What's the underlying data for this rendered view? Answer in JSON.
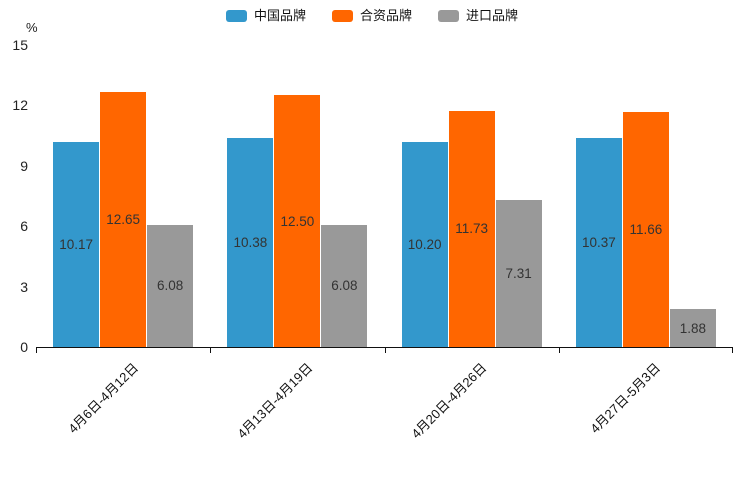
{
  "chart_data": {
    "type": "bar",
    "title": "",
    "xlabel": "",
    "ylabel": "%",
    "ylim": [
      0,
      15
    ],
    "yticks": [
      0,
      3,
      6,
      9,
      12,
      15
    ],
    "grid": false,
    "legend_position": "top-center",
    "value_labels": "inside-center",
    "value_decimals": 2,
    "categories": [
      "4月6日-4月12日",
      "4月13日-4月19日",
      "4月20日-4月26日",
      "4月27日-5月3日"
    ],
    "series": [
      {
        "name": "中国品牌",
        "slug": "china-brands",
        "color": "#3398CC",
        "values": [
          10.17,
          10.38,
          10.2,
          10.37
        ]
      },
      {
        "name": "合资品牌",
        "slug": "joint-venture-brands",
        "color": "#FF6600",
        "values": [
          12.65,
          12.5,
          11.73,
          11.66
        ]
      },
      {
        "name": "进口品牌",
        "slug": "import-brands",
        "color": "#999999",
        "values": [
          6.08,
          6.08,
          7.31,
          1.88
        ]
      }
    ],
    "colors": {
      "axis": "#111111",
      "value_label": "#333333",
      "tick_label": "#222222"
    }
  }
}
